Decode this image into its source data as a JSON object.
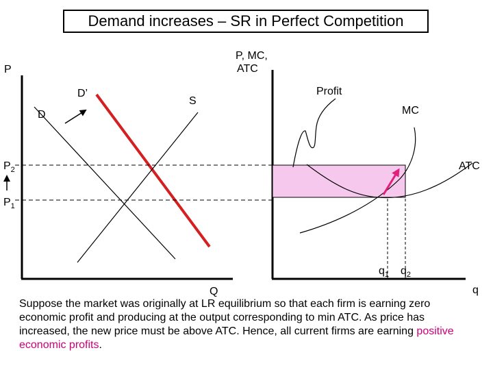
{
  "title": "Demand increases – SR in Perfect Competition",
  "market": {
    "y_axis_label": "P",
    "x_axis_label": "Q",
    "price_labels": [
      {
        "base": "P",
        "sub": "2"
      },
      {
        "base": "P",
        "sub": "1"
      }
    ],
    "curves": {
      "demand_original": "D",
      "demand_new": "D’",
      "supply": "S"
    }
  },
  "firm": {
    "y_axis_label": "P, MC,",
    "y_axis_label_line2": "ATC",
    "x_axis_label": "q",
    "quantity_labels": [
      {
        "base": "q",
        "sub": "1"
      },
      {
        "base": "q",
        "sub": "2"
      }
    ],
    "curves": {
      "mc": "MC",
      "atc": "ATC"
    },
    "profit_label": "Profit"
  },
  "colors": {
    "new_demand": "#d42020",
    "profit_fill": "#f6c8ee",
    "arrow": "#e0207a",
    "highlight_text": "#cc0077"
  },
  "caption": {
    "text_before": "Suppose the market was originally at LR equilibrium so that each firm is earning zero economic profit and producing at the output corresponding to min ATC.  As price has increased, the new price must be above ATC.  Hence, all current firms are earning ",
    "highlight": "positive economic profits",
    "text_after": "."
  }
}
